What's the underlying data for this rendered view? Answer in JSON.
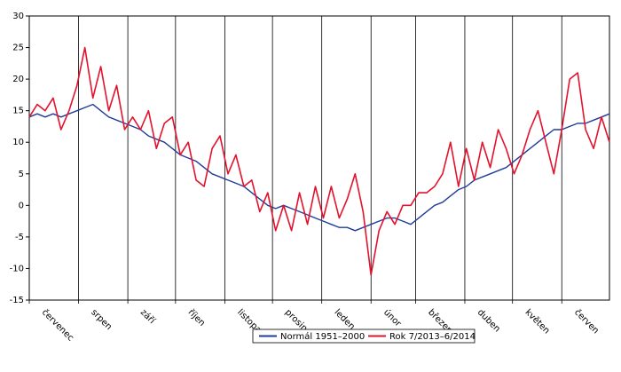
{
  "chart_data": {
    "type": "line",
    "x": [
      0,
      5,
      10,
      15,
      20,
      25,
      30,
      35,
      40,
      45,
      50,
      55,
      60,
      65,
      70,
      75,
      80,
      85,
      90,
      95,
      100,
      105,
      110,
      115,
      120,
      125,
      130,
      135,
      140,
      145,
      150,
      155,
      160,
      165,
      170,
      175,
      180,
      185,
      190,
      195,
      200,
      205,
      210,
      215,
      220,
      225,
      230,
      235,
      240,
      245,
      250,
      255,
      260,
      265,
      270,
      275,
      280,
      285,
      290,
      295,
      300,
      305,
      310,
      315,
      320,
      325,
      330,
      335,
      340,
      345,
      350,
      355,
      360,
      365
    ],
    "series": [
      {
        "name": "Normál 1951–2000",
        "color": "#1f3c99",
        "values": [
          14,
          14.5,
          14,
          14.5,
          14,
          14.5,
          15,
          15.5,
          16,
          15,
          14,
          13.5,
          13,
          12.5,
          12,
          11,
          10.5,
          10,
          9,
          8,
          7.5,
          7,
          6,
          5,
          4.5,
          4,
          3.5,
          3,
          2,
          1,
          0,
          -0.5,
          0,
          -0.5,
          -1,
          -1.5,
          -2,
          -2.5,
          -3,
          -3.5,
          -3.5,
          -4,
          -3.5,
          -3,
          -2.5,
          -2,
          -2,
          -2.5,
          -3,
          -2,
          -1,
          0,
          0.5,
          1.5,
          2.5,
          3,
          4,
          4.5,
          5,
          5.5,
          6,
          7,
          8,
          9,
          10,
          11,
          12,
          12,
          12.5,
          13,
          13,
          13.5,
          14,
          14.5
        ]
      },
      {
        "name": "Rok 7/2013–6/2014",
        "color": "#e3122d",
        "values": [
          14,
          16,
          15,
          17,
          12,
          15,
          19,
          25,
          17,
          22,
          15,
          19,
          12,
          14,
          12,
          15,
          9,
          13,
          14,
          8,
          10,
          4,
          3,
          9,
          11,
          5,
          8,
          3,
          4,
          -1,
          2,
          -4,
          0,
          -4,
          2,
          -3,
          3,
          -2,
          3,
          -2,
          1,
          5,
          -1,
          -11,
          -4,
          -1,
          -3,
          0,
          0,
          2,
          2,
          3,
          5,
          10,
          3,
          9,
          4,
          10,
          6,
          12,
          9,
          5,
          8,
          12,
          15,
          10,
          5,
          12,
          20,
          21,
          12,
          9,
          14,
          10
        ]
      }
    ],
    "xlim": [
      0,
      365
    ],
    "xticks": [
      {
        "value": 0,
        "label": "červenec"
      },
      {
        "value": 31,
        "label": "srpen"
      },
      {
        "value": 62,
        "label": "září"
      },
      {
        "value": 92,
        "label": "říjen"
      },
      {
        "value": 123,
        "label": "listopad"
      },
      {
        "value": 153,
        "label": "prosinec"
      },
      {
        "value": 184,
        "label": "leden"
      },
      {
        "value": 215,
        "label": "únor"
      },
      {
        "value": 243,
        "label": "březen"
      },
      {
        "value": 274,
        "label": "duben"
      },
      {
        "value": 304,
        "label": "květen"
      },
      {
        "value": 335,
        "label": "červen"
      }
    ],
    "ylim": [
      -15,
      30
    ],
    "yticks": [
      -15,
      -10,
      -5,
      0,
      5,
      10,
      15,
      20,
      25,
      30
    ],
    "legend": "bottom"
  }
}
